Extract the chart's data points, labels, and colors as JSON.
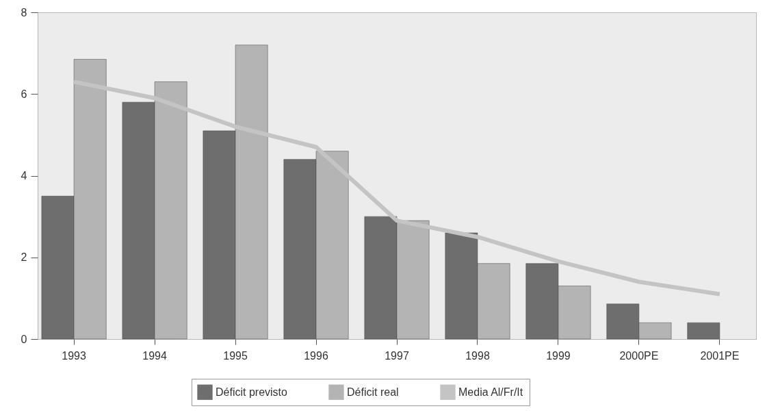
{
  "chart_data": {
    "type": "bar",
    "categories": [
      "1993",
      "1994",
      "1995",
      "1996",
      "1997",
      "1998",
      "1999",
      "2000PE",
      "2001PE"
    ],
    "series": [
      {
        "name": "Déficit previsto",
        "color": "#6e6e6e",
        "values": [
          3.5,
          5.8,
          5.1,
          4.4,
          3.0,
          2.6,
          1.85,
          0.86,
          0.4
        ]
      },
      {
        "name": "Déficit real",
        "color": "#b4b4b4",
        "values": [
          6.85,
          6.3,
          7.2,
          4.6,
          2.9,
          1.85,
          1.3,
          0.4,
          null
        ]
      },
      {
        "name": "Media Al/Fr/It",
        "type": "line",
        "color": "#c4c4c4",
        "values": [
          6.3,
          5.9,
          5.2,
          4.7,
          2.9,
          2.5,
          1.9,
          1.4,
          1.1
        ]
      }
    ],
    "ylim": [
      0,
      8
    ],
    "yticks": [
      0,
      2,
      4,
      6,
      8
    ],
    "grid": false,
    "legend": "bottom"
  }
}
